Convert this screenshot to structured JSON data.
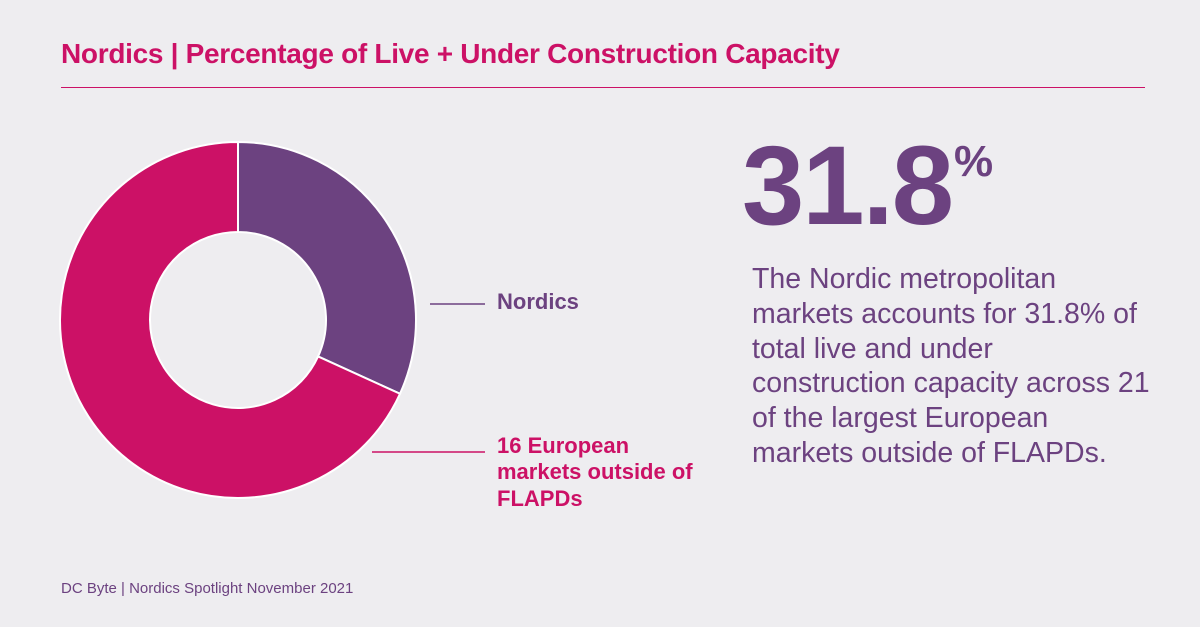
{
  "title": "Nordics | Percentage of Live + Under Construction Capacity",
  "highlight": {
    "value": "31.8",
    "unit": "%"
  },
  "description": "The Nordic metropolitan markets accounts for 31.8% of total live and under construction capacity across 21 of the largest European markets outside of FLAPDs.",
  "source": "DC Byte | Nordics Spotlight November 2021",
  "colors": {
    "nordics": "#6c4280",
    "europe": "#cc1166",
    "background": "#eeedf0"
  },
  "chart_data": {
    "type": "pie",
    "subtype": "donut",
    "title": "Nordics | Percentage of Live + Under Construction Capacity",
    "unit": "%",
    "series": [
      {
        "name": "Nordics",
        "value": 31.8
      },
      {
        "name": "16 European markets outside of FLAPDs",
        "value": 68.2
      }
    ],
    "legend_placement": "right (leader lines)"
  }
}
